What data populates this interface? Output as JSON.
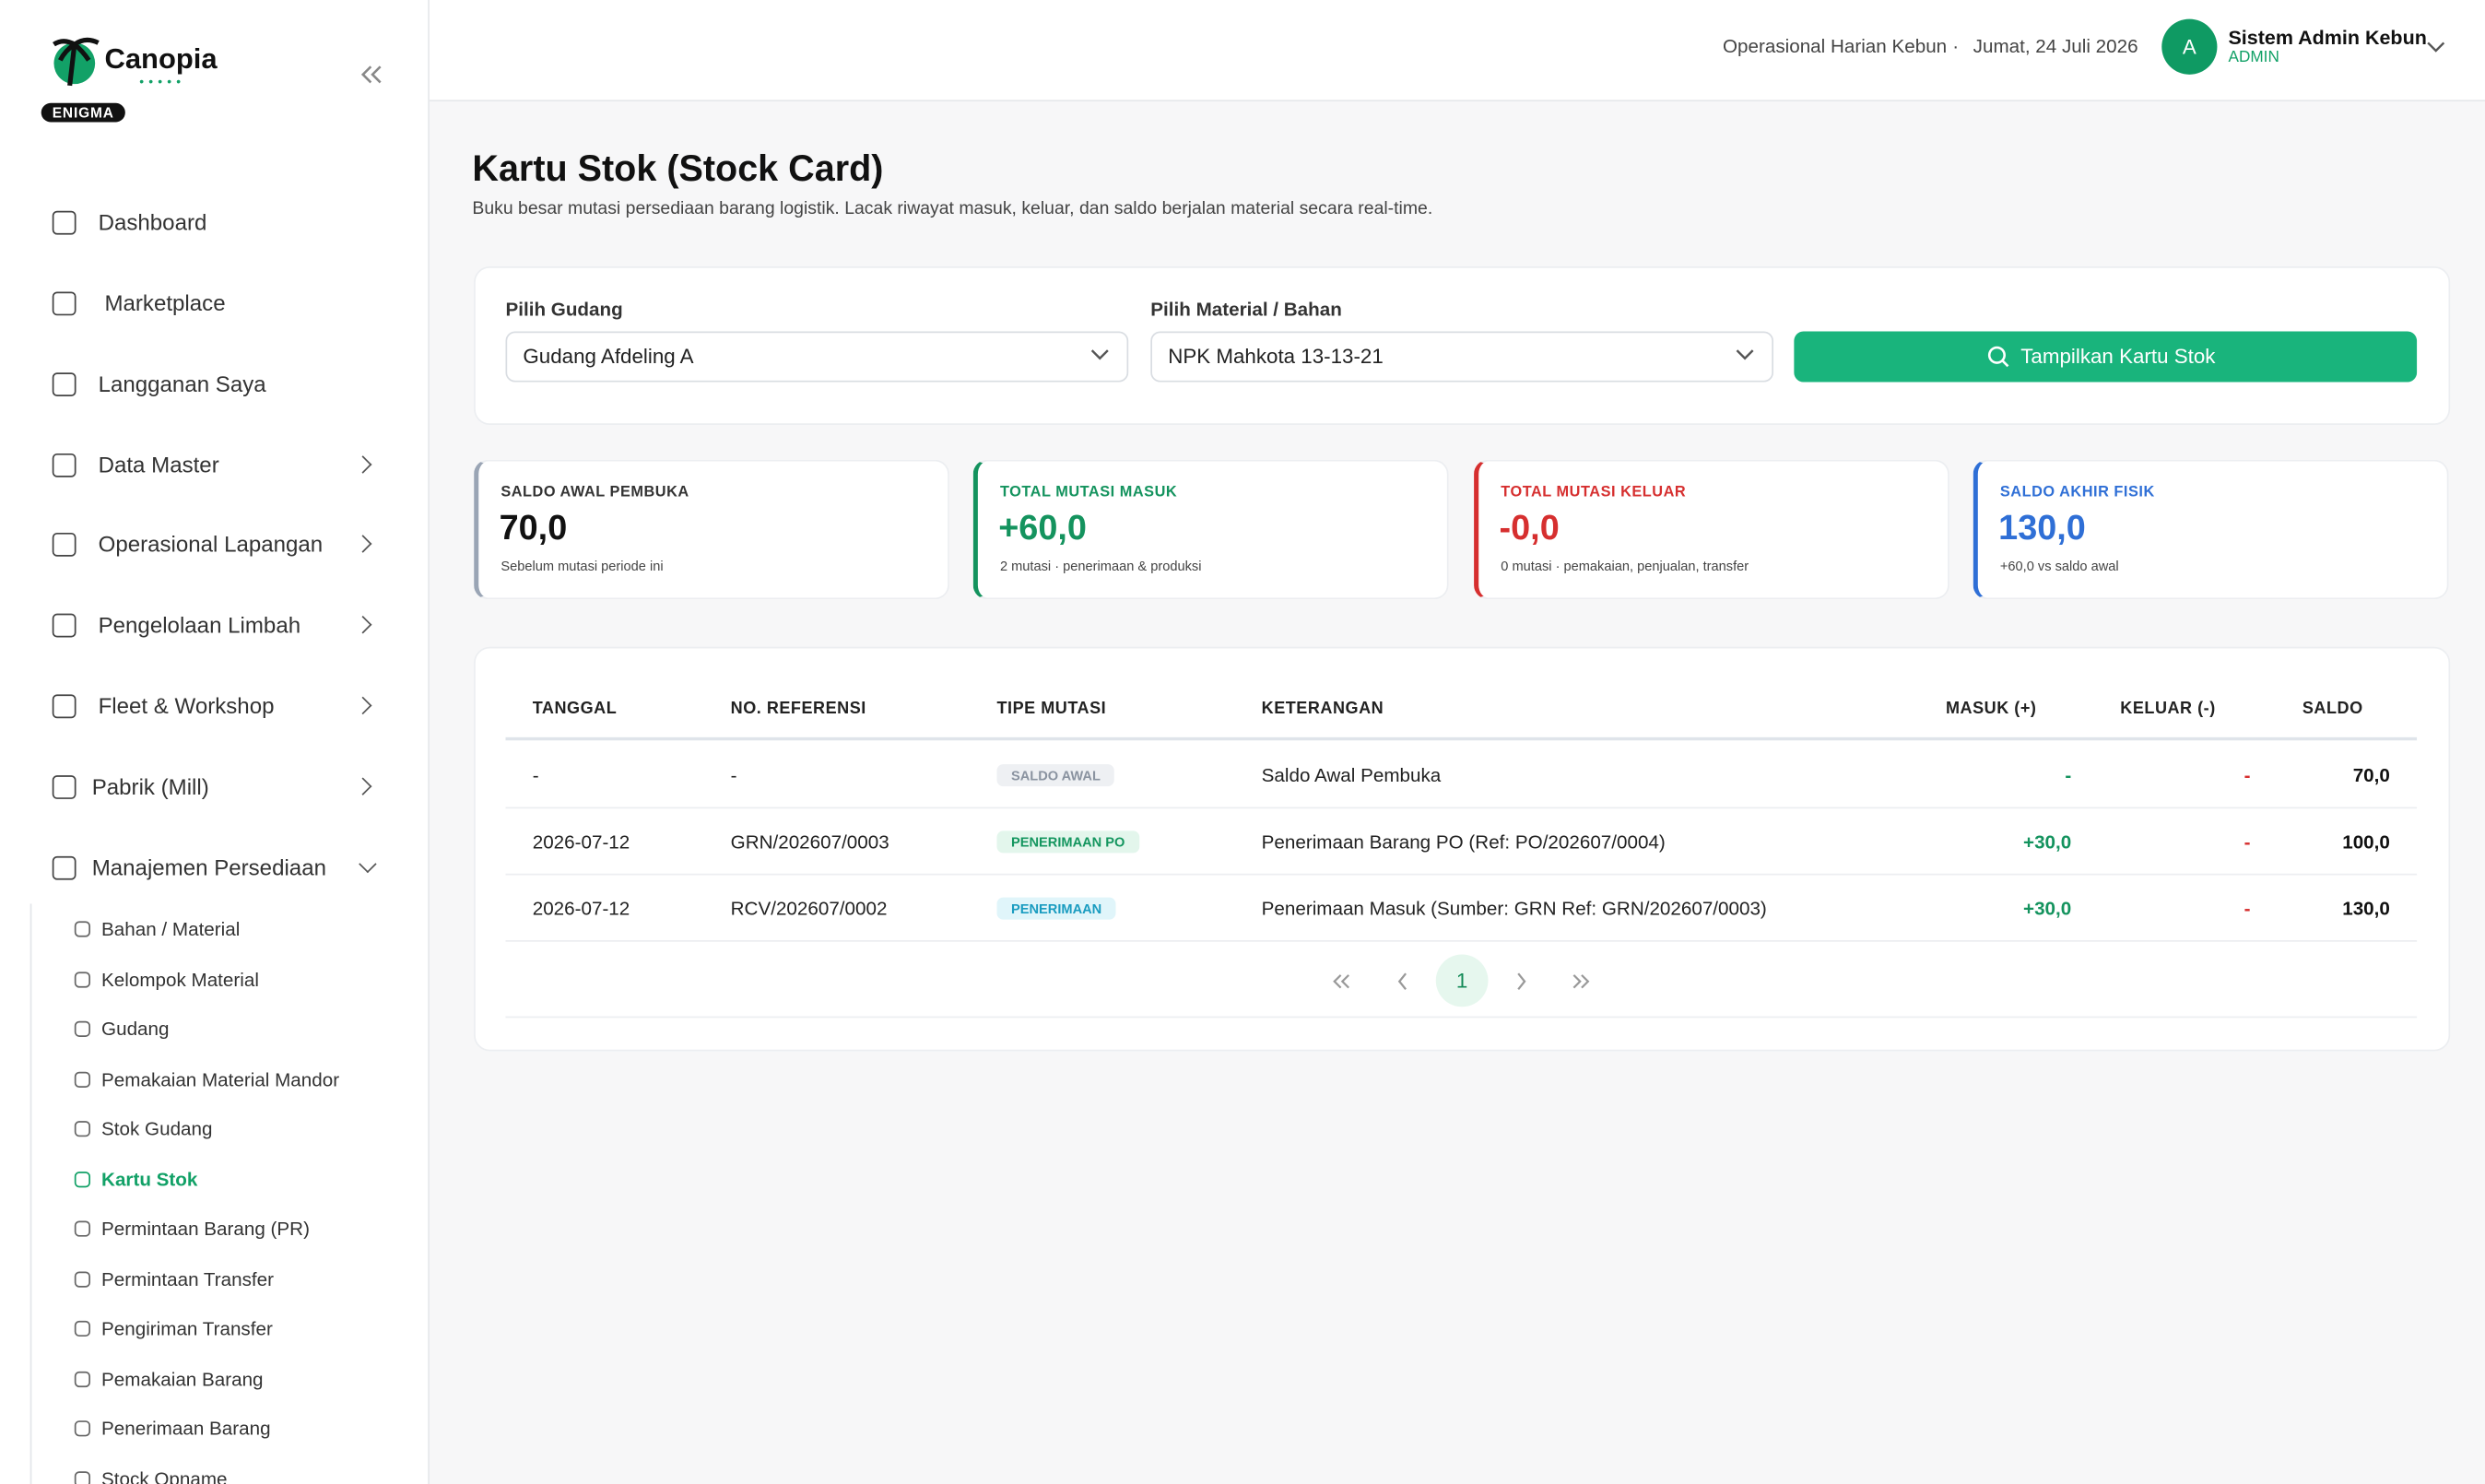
{
  "sidebar": {
    "brand": "Canopia",
    "badge": "ENIGMA",
    "nav": [
      "Dashboard",
      "Marketplace",
      "Langganan Saya",
      "Data Master",
      "Operasional Lapangan",
      "Pengelolaan Limbah",
      "Fleet & Workshop",
      "Pabrik (Mill)",
      "Manajemen Persediaan"
    ],
    "subnav": [
      "Bahan / Material",
      "Kelompok Material",
      "Gudang",
      "Pemakaian Material Mandor",
      "Stok Gudang",
      "Kartu Stok",
      "Permintaan Barang (PR)",
      "Permintaan Transfer",
      "Pengiriman Transfer",
      "Pemakaian Barang",
      "Penerimaan Barang",
      "Stock Opname"
    ],
    "active_subnav": 5
  },
  "header": {
    "context": "Operasional Harian Kebun",
    "date": "Jumat, 24 Juli 2026",
    "avatar": "A",
    "user": "Sistem Admin Kebun",
    "role": "ADMIN"
  },
  "page": {
    "title": "Kartu Stok (Stock Card)",
    "subtitle": "Buku besar mutasi persediaan barang logistik. Lacak riwayat masuk, keluar, dan saldo berjalan material secara real-time."
  },
  "filters": {
    "warehouse_label": "Pilih Gudang",
    "warehouse": "Gudang Afdeling A",
    "material_label": "Pilih Material / Bahan",
    "material": "NPK Mahkota 13-13-21",
    "button": "Tampilkan Kartu Stok"
  },
  "cards": [
    {
      "label": "SALDO AWAL PEMBUKA",
      "value": "70,0",
      "note": "Sebelum mutasi periode ini"
    },
    {
      "label": "TOTAL MUTASI MASUK",
      "value": "+60,0",
      "note": "2 mutasi · penerimaan & produksi"
    },
    {
      "label": "TOTAL MUTASI KELUAR",
      "value": "-0,0",
      "note": "0 mutasi · pemakaian, penjualan, transfer"
    },
    {
      "label": "SALDO AKHIR FISIK",
      "value": "130,0",
      "note": "+60,0 vs saldo awal"
    }
  ],
  "table": {
    "columns": [
      "TANGGAL",
      "NO. REFERENSI",
      "TIPE MUTASI",
      "KETERANGAN",
      "MASUK (+)",
      "KELUAR (-)",
      "SALDO"
    ],
    "rows": [
      [
        "-",
        "-",
        "SALDO AWAL",
        "Saldo Awal Pembuka",
        "-",
        "-",
        "70,0"
      ],
      [
        "2026-07-12",
        "GRN/202607/0003",
        "PENERIMAAN PO",
        "Penerimaan Barang PO (Ref: PO/202607/0004)",
        "+30,0",
        "-",
        "100,0"
      ],
      [
        "2026-07-12",
        "RCV/202607/0002",
        "PENERIMAAN",
        "Penerimaan Masuk (Sumber: GRN Ref: GRN/202607/0003)",
        "+30,0",
        "-",
        "130,0"
      ]
    ]
  },
  "pagination": {
    "current": "1"
  }
}
